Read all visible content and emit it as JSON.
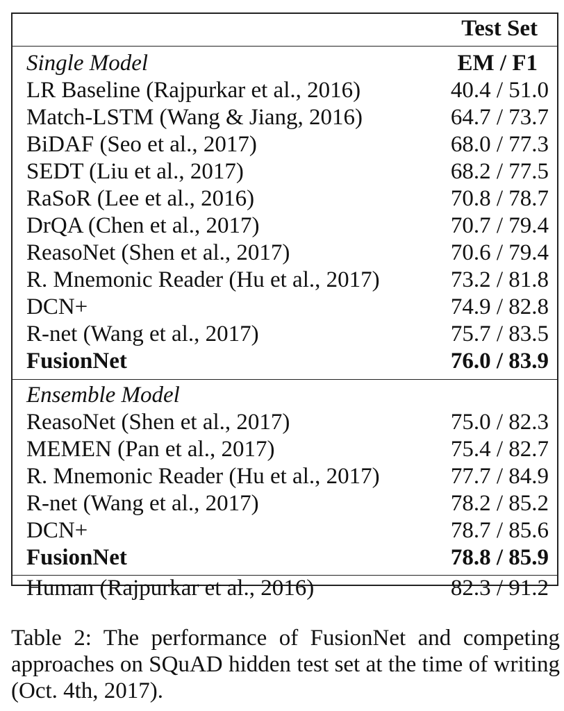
{
  "table": {
    "header": "Test Set",
    "subheader": "EM / F1",
    "single_label": "Single Model",
    "single_rows": [
      {
        "name": "LR Baseline (Rajpurkar et al., 2016)",
        "score": "40.4 / 51.0"
      },
      {
        "name": "Match-LSTM (Wang & Jiang, 2016)",
        "score": "64.7 / 73.7"
      },
      {
        "name": "BiDAF (Seo et al., 2017)",
        "score": "68.0 / 77.3"
      },
      {
        "name": "SEDT (Liu et al., 2017)",
        "score": "68.2 / 77.5"
      },
      {
        "name": "RaSoR (Lee et al., 2016)",
        "score": "70.8 / 78.7"
      },
      {
        "name": "DrQA (Chen et al., 2017)",
        "score": "70.7 / 79.4"
      },
      {
        "name": "ReasoNet (Shen et al., 2017)",
        "score": "70.6 / 79.4"
      },
      {
        "name": "R. Mnemonic Reader (Hu et al., 2017)",
        "score": "73.2 / 81.8"
      },
      {
        "name": "DCN+",
        "score": "74.9 / 82.8"
      },
      {
        "name": "R-net (Wang et al., 2017)",
        "score": "75.7 / 83.5"
      },
      {
        "name": "FusionNet",
        "score": "76.0 / 83.9"
      }
    ],
    "ensemble_label": "Ensemble Model",
    "ensemble_rows": [
      {
        "name": "ReasoNet (Shen et al., 2017)",
        "score": "75.0 / 82.3"
      },
      {
        "name": "MEMEN (Pan et al., 2017)",
        "score": "75.4 / 82.7"
      },
      {
        "name": "R. Mnemonic Reader (Hu et al., 2017)",
        "score": "77.7 / 84.9"
      },
      {
        "name": "R-net (Wang et al., 2017)",
        "score": "78.2 / 85.2"
      },
      {
        "name": "DCN+",
        "score": "78.7 / 85.6"
      },
      {
        "name": "FusionNet",
        "score": "78.8 / 85.9"
      }
    ],
    "human_row": {
      "name": "Human (Rajpurkar et al., 2016)",
      "score": "82.3 / 91.2"
    }
  },
  "caption": "Table 2: The performance of FusionNet and competing approaches on SQuAD hidden test set at the time of writing (Oct. 4th, 2017)."
}
